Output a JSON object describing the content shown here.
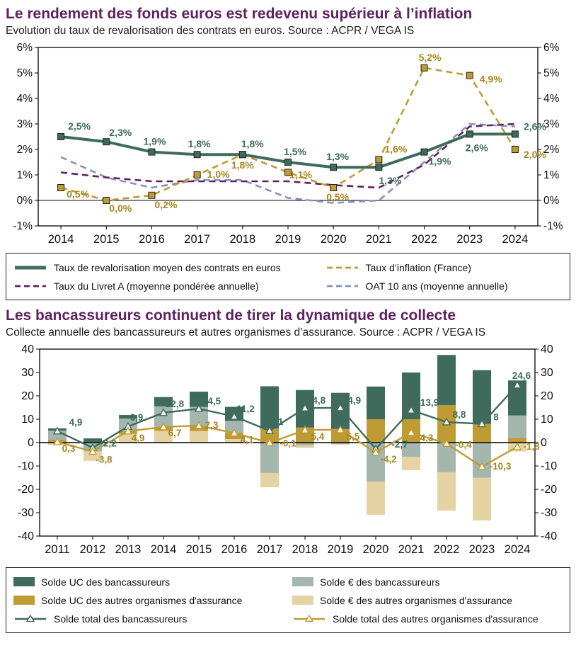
{
  "colors": {
    "title_accent": "#5f2161",
    "green": "#3e6b5c",
    "gold": "#bf9b33",
    "gold_text": "#a5871f",
    "tan": "#e6d3a3",
    "gray_green": "#a4b6ae",
    "purple": "#5f2161",
    "blue_gray": "#8593bb",
    "axis": "#000000",
    "text": "#111111"
  },
  "chart_data": [
    {
      "type": "line",
      "title": "Le rendement des fonds euros est redevenu supérieur à l’inflation",
      "subtitle": "Evolution du taux de revalorisation des contrats en euros. Source : ACPR / VEGA IS",
      "legend_position": "below",
      "grid": false,
      "x": [
        2014,
        2015,
        2016,
        2017,
        2018,
        2019,
        2020,
        2021,
        2022,
        2023,
        2024
      ],
      "ylim": [
        -1,
        6
      ],
      "ytick_values": [
        6,
        5,
        4,
        3,
        2,
        1,
        0,
        -1
      ],
      "yticks": [
        "6%",
        "5%",
        "4%",
        "3%",
        "2%",
        "1%",
        "0%",
        "-1%"
      ],
      "series": [
        {
          "name": "Taux de revalorisation moyen des contrats en euros",
          "color": "#3e6b5c",
          "label_color": "#3e6b5c",
          "style": "solid",
          "width": 4,
          "marker": "square",
          "values": [
            2.5,
            2.3,
            1.9,
            1.8,
            1.8,
            1.5,
            1.3,
            1.3,
            1.9,
            2.6,
            2.6
          ],
          "labels": [
            "2,5%",
            "2,3%",
            "1,9%",
            "1,8%",
            "1,8%",
            "1,5%",
            "1,3%",
            "1,3%",
            "1,9%",
            "2,6%",
            "2,6%"
          ],
          "label_dx": [
            26,
            20,
            4,
            3,
            14,
            10,
            6,
            16,
            22,
            10,
            28
          ],
          "label_dy": [
            -10,
            -8,
            -10,
            -10,
            -10,
            -10,
            -10,
            24,
            18,
            24,
            -6
          ]
        },
        {
          "name": "Taux d’inflation (France)",
          "color": "#bf9b33",
          "label_color": "#a5871f",
          "style": "dashed",
          "width": 2.6,
          "marker": "square",
          "values": [
            0.5,
            0.0,
            0.2,
            1.0,
            1.8,
            1.1,
            0.5,
            1.6,
            5.2,
            4.9,
            2.0
          ],
          "labels": [
            "0,5%",
            "0,0%",
            "0,2%",
            "1,0%",
            "1,8%",
            "1,1%",
            "0,5%",
            "1,6%",
            "5,2%",
            "4,9%",
            "2,0%"
          ],
          "label_dx": [
            24,
            20,
            20,
            30,
            0,
            18,
            6,
            24,
            8,
            30,
            28
          ],
          "label_dy": [
            14,
            16,
            18,
            4,
            20,
            8,
            18,
            -10,
            -10,
            10,
            12
          ]
        },
        {
          "name": "Taux du Livret A (moyenne pondérée annuelle)",
          "color": "#5f2161",
          "style": "dashed",
          "width": 2.6,
          "marker": "none",
          "values": [
            1.1,
            0.9,
            0.75,
            0.75,
            0.75,
            0.75,
            0.6,
            0.5,
            1.4,
            2.9,
            3.0
          ]
        },
        {
          "name": "OAT 10 ans (moyenne annuelle)",
          "color": "#8593bb",
          "style": "dashed",
          "width": 2.6,
          "marker": "none",
          "values": [
            1.7,
            0.9,
            0.5,
            0.8,
            0.8,
            0.1,
            -0.1,
            0.0,
            1.5,
            3.0,
            2.9
          ]
        }
      ]
    },
    {
      "type": "bar",
      "title": "Les bancassureurs continuent de tirer la dynamique de collecte",
      "subtitle": "Collecte annuelle des bancassureurs et autres organismes d’assurance. Source : ACPR / VEGA IS",
      "legend_position": "below",
      "grid": false,
      "x": [
        2011,
        2012,
        2013,
        2014,
        2015,
        2016,
        2017,
        2018,
        2019,
        2020,
        2021,
        2022,
        2023,
        2024
      ],
      "ylim": [
        -40,
        40
      ],
      "ytick_values": [
        40,
        30,
        20,
        10,
        0,
        -10,
        -20,
        -30,
        -40
      ],
      "yticks": [
        "40",
        "30",
        "20",
        "10",
        "0",
        "-10",
        "-20",
        "-30",
        "-40"
      ],
      "neg_stack_order": [
        2,
        0,
        1,
        3
      ],
      "bar_series": [
        {
          "name": "Solde € des autres organismes d'assurance",
          "color": "#e6d3a3",
          "values": [
            -0.9,
            -4.0,
            3.7,
            5.0,
            5.0,
            1.5,
            -6.1,
            -1.1,
            -0.3,
            -14.2,
            -5.7,
            -16.4,
            -18.3,
            -3.8
          ]
        },
        {
          "name": "Solde UC des autres organismes d'assurance",
          "color": "#bf9b33",
          "values": [
            1.2,
            0.2,
            1.2,
            1.7,
            2.3,
            2.6,
            6.0,
            6.5,
            5.8,
            10.0,
            10.0,
            16.0,
            8.0,
            2.0
          ]
        },
        {
          "name": "Solde € des bancassureurs",
          "color": "#a4b6ae",
          "values": [
            3.9,
            -3.8,
            5.4,
            8.8,
            8.0,
            5.2,
            -13.0,
            -1.2,
            -0.6,
            -16.7,
            -6.1,
            -12.7,
            -15.0,
            9.6
          ]
        },
        {
          "name": "Solde UC des bancassureurs",
          "color": "#3e6b5c",
          "values": [
            1.0,
            1.6,
            1.5,
            4.0,
            6.5,
            6.0,
            18.1,
            16.0,
            15.5,
            14.0,
            20.0,
            21.5,
            23.0,
            15.0
          ]
        }
      ],
      "line_series": [
        {
          "name": "Solde total des bancassureurs",
          "color": "#3e6b5c",
          "label_color": "#3e6b5c",
          "values": [
            4.9,
            -2.2,
            6.9,
            12.8,
            14.5,
            11.2,
            5.1,
            14.8,
            14.9,
            -2.7,
            13.9,
            8.8,
            8,
            24.6
          ],
          "labels": [
            "4,9",
            "-2,2",
            "6,9",
            "12,8",
            "14,5",
            "11,2",
            "5,1",
            "14,8",
            "14,9",
            "-2,7",
            "13,9",
            "8,8",
            "8",
            "24,6"
          ],
          "label_dx": [
            26,
            22,
            12,
            16,
            18,
            16,
            10,
            16,
            16,
            34,
            26,
            18,
            20,
            6
          ],
          "label_dy": [
            -8,
            -2,
            -8,
            -8,
            -6,
            -6,
            -8,
            -6,
            -6,
            -2,
            -6,
            -6,
            -5,
            -9
          ]
        },
        {
          "name": "Solde total des autres organismes d'assurance",
          "color": "#bf9b33",
          "label_color": "#a5871f",
          "values": [
            0.3,
            -3.8,
            4.9,
            6.7,
            7.3,
            4.1,
            -0.1,
            5.4,
            5.5,
            -4.2,
            4.3,
            -0.4,
            -10.3,
            -1.8
          ],
          "labels": [
            "0,3",
            "-3,8",
            "4,9",
            "6,7",
            "7,3",
            "4,1",
            "-0,1",
            "5,4",
            "5,5",
            "-4,2",
            "4,3",
            "-0,4",
            "-10,3",
            "-1,8"
          ],
          "label_dx": [
            16,
            16,
            14,
            16,
            18,
            18,
            26,
            18,
            18,
            18,
            22,
            24,
            26,
            20
          ],
          "label_dy": [
            14,
            16,
            14,
            13,
            4,
            14,
            5,
            14,
            14,
            14,
            12,
            6,
            4,
            4
          ]
        }
      ]
    }
  ]
}
